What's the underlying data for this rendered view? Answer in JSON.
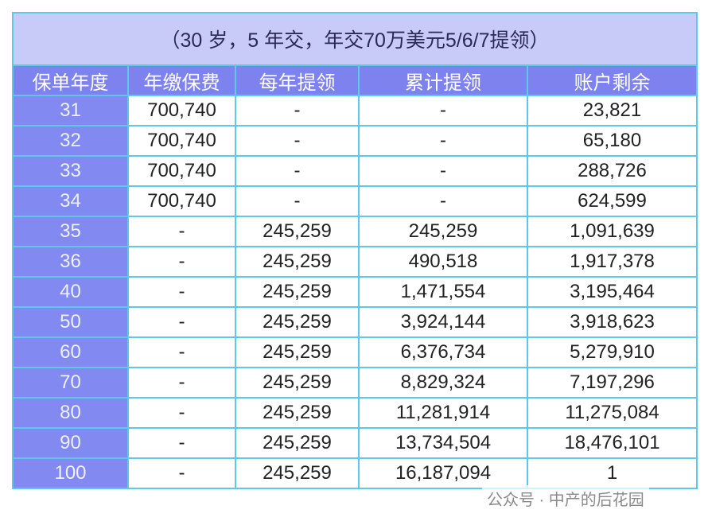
{
  "table": {
    "title": "（30 岁，5 年交，年交70万美元5/6/7提领）",
    "headers": [
      "保单年度",
      "年缴保费",
      "每年提领",
      "累计提领",
      "账户剩余"
    ],
    "rows": [
      [
        "31",
        "700,740",
        "-",
        "-",
        "23,821"
      ],
      [
        "32",
        "700,740",
        "-",
        "-",
        "65,180"
      ],
      [
        "33",
        "700,740",
        "-",
        "-",
        "288,726"
      ],
      [
        "34",
        "700,740",
        "-",
        "-",
        "624,599"
      ],
      [
        "35",
        "-",
        "245,259",
        "245,259",
        "1,091,639"
      ],
      [
        "36",
        "-",
        "245,259",
        "490,518",
        "1,917,378"
      ],
      [
        "40",
        "-",
        "245,259",
        "1,471,554",
        "3,195,464"
      ],
      [
        "50",
        "-",
        "245,259",
        "3,924,144",
        "3,918,623"
      ],
      [
        "60",
        "-",
        "245,259",
        "6,376,734",
        "5,279,910"
      ],
      [
        "70",
        "-",
        "245,259",
        "8,829,324",
        "7,197,296"
      ],
      [
        "80",
        "-",
        "245,259",
        "11,281,914",
        "11,275,084"
      ],
      [
        "90",
        "-",
        "245,259",
        "13,734,504",
        "18,476,101"
      ],
      [
        "100",
        "-",
        "245,259",
        "16,187,094",
        "1"
      ]
    ]
  },
  "watermark": "公众号 · 中产的后花园"
}
